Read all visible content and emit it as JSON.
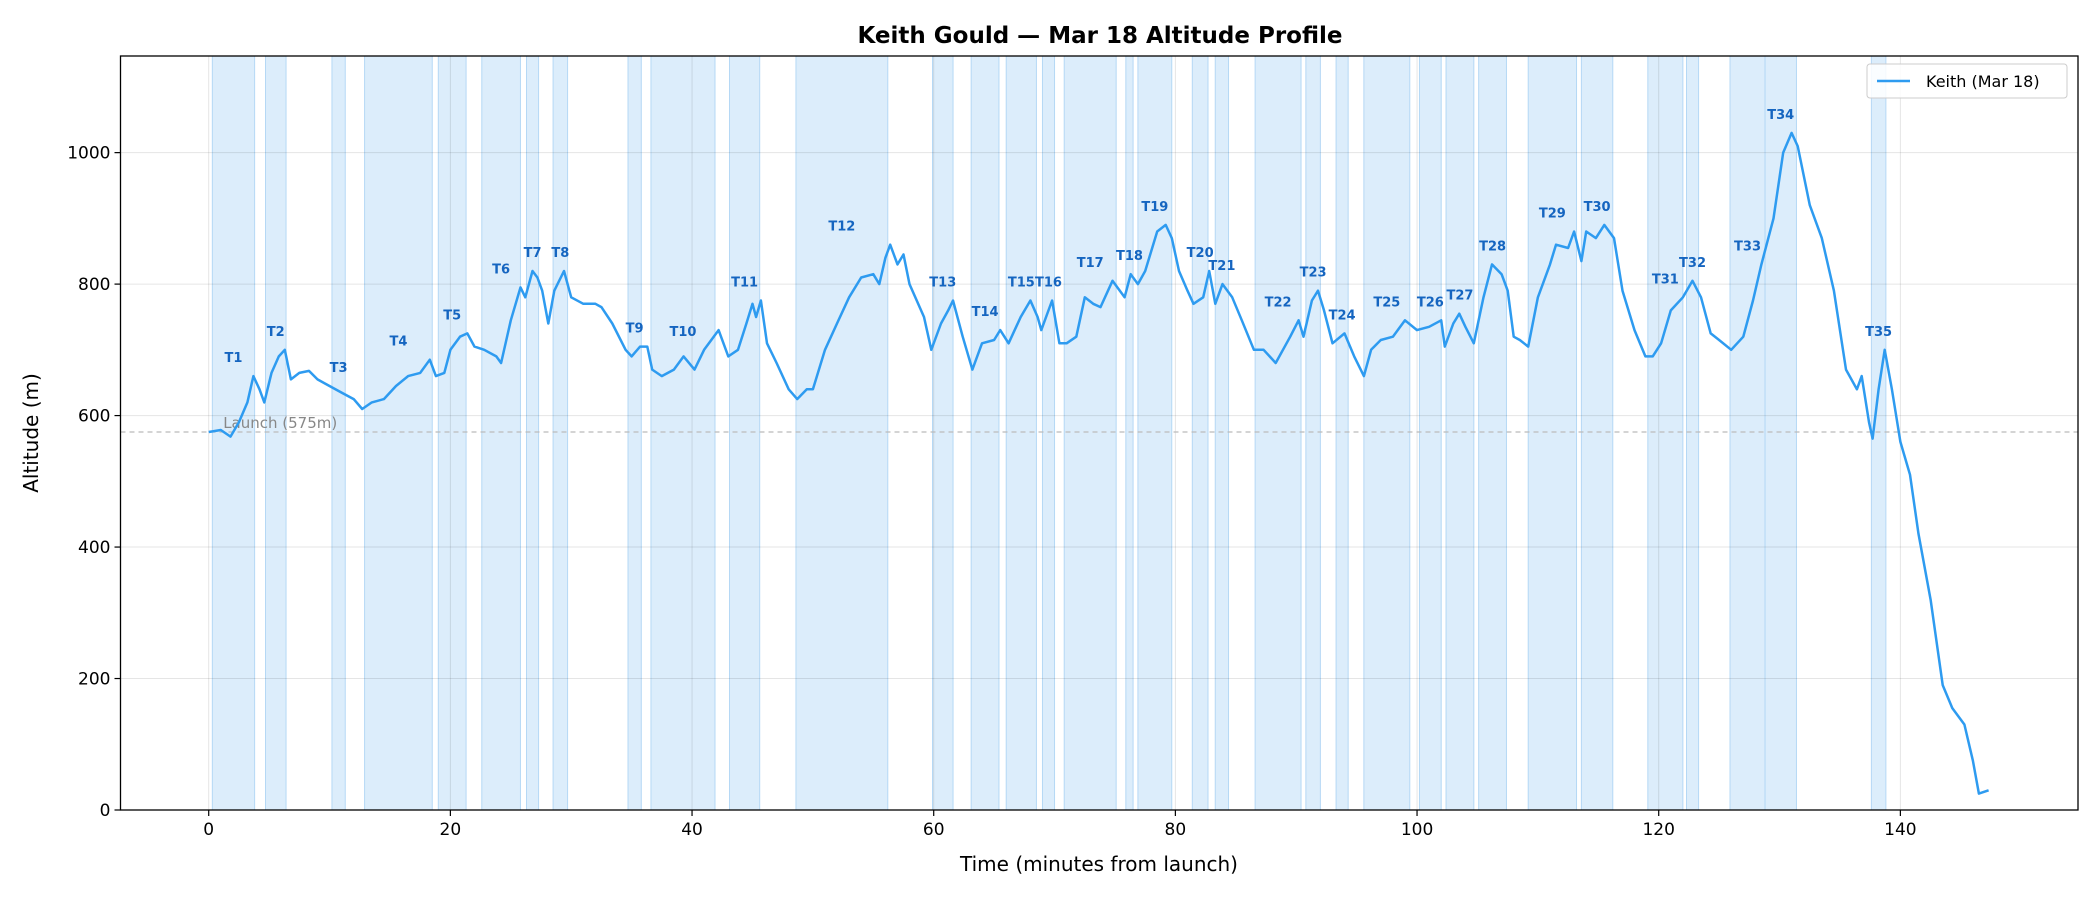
{
  "chart_data": {
    "type": "line",
    "title": "Keith Gould — Mar 18 Altitude Profile",
    "xlabel": "Time (minutes from launch)",
    "ylabel": "Altitude (m)",
    "xlim": [
      -7.3,
      154.7
    ],
    "ylim": [
      0,
      1147
    ],
    "xticks": [
      0,
      20,
      40,
      60,
      80,
      100,
      120,
      140
    ],
    "yticks": [
      0,
      200,
      400,
      600,
      800,
      1000
    ],
    "grid": true,
    "legend_position": "top-right",
    "colors": {
      "line": "#2e9bf0",
      "band": "#dcedfb",
      "band_edge": "#b5d8f5",
      "label": "#1565c0",
      "launch": "#bbbbbb"
    },
    "launch": {
      "altitude": 575,
      "label": "Launch (575m)"
    },
    "series": [
      {
        "name": "Keith (Mar 18)",
        "x": [
          0,
          1,
          1.8,
          2.5,
          3.2,
          3.7,
          4.2,
          4.6,
          5.2,
          5.8,
          6.3,
          6.8,
          7.5,
          8.3,
          9,
          10,
          11,
          12,
          12.7,
          13.5,
          14.5,
          15.5,
          16.5,
          17.5,
          18.3,
          18.8,
          19.5,
          20,
          20.8,
          21.4,
          22,
          22.8,
          23.8,
          24.2,
          25,
          25.8,
          26.2,
          26.8,
          27.2,
          27.6,
          28.1,
          28.6,
          29.4,
          30,
          31,
          32,
          32.5,
          33.4,
          34.5,
          35,
          35.7,
          36.3,
          36.7,
          37.5,
          38.5,
          39.3,
          40.2,
          41,
          42.2,
          43,
          43.8,
          44.5,
          45,
          45.3,
          45.7,
          46.2,
          47,
          48,
          48.7,
          49.5,
          50,
          51,
          52,
          53,
          54,
          55,
          55.5,
          56,
          56.4,
          57,
          57.5,
          58,
          59.2,
          59.8,
          60.6,
          61.2,
          61.6,
          62.4,
          63.2,
          64,
          65,
          65.5,
          66.2,
          67.2,
          68,
          68.6,
          68.9,
          69.8,
          70.4,
          71,
          71.8,
          72.5,
          73.2,
          73.8,
          74.8,
          75.8,
          76.3,
          76.9,
          77.5,
          78.5,
          79.2,
          79.7,
          80.3,
          81,
          81.5,
          82.3,
          82.8,
          83.3,
          83.9,
          84.7,
          85.5,
          86.5,
          87.3,
          88.3,
          89.5,
          90.2,
          90.6,
          91.3,
          91.8,
          92.3,
          93,
          94,
          94.8,
          95.6,
          96.2,
          97,
          98,
          99,
          100,
          101,
          102,
          102.3,
          103,
          103.5,
          104,
          104.7,
          105.5,
          106.2,
          107,
          107.5,
          108,
          108.5,
          109.2,
          110,
          111,
          111.5,
          112.5,
          113,
          113.6,
          114,
          114.8,
          115.5,
          116.3,
          117,
          118,
          118.9,
          119.5,
          120.2,
          121,
          122,
          122.8,
          123.5,
          124.3,
          125,
          126,
          127,
          127.8,
          128.5,
          129.5,
          130.3,
          131,
          131.5,
          132.5,
          133.5,
          134.5,
          135.5,
          136.4,
          136.8,
          137.4,
          137.7,
          138.2,
          138.7,
          139.3,
          140,
          140.8,
          141.5,
          142.5,
          143.5,
          144.3,
          145.3,
          146,
          146.5,
          147.3
        ],
        "y": [
          575,
          578,
          568,
          590,
          620,
          660,
          640,
          620,
          665,
          690,
          700,
          655,
          665,
          668,
          655,
          645,
          635,
          625,
          610,
          620,
          625,
          645,
          660,
          665,
          685,
          660,
          665,
          700,
          720,
          725,
          705,
          700,
          690,
          680,
          745,
          795,
          780,
          820,
          810,
          790,
          740,
          790,
          820,
          780,
          770,
          770,
          765,
          740,
          700,
          690,
          705,
          705,
          670,
          660,
          670,
          690,
          670,
          700,
          730,
          690,
          700,
          740,
          770,
          750,
          775,
          710,
          680,
          640,
          625,
          640,
          640,
          700,
          740,
          780,
          810,
          815,
          800,
          840,
          860,
          830,
          845,
          800,
          750,
          700,
          740,
          760,
          775,
          720,
          670,
          710,
          715,
          730,
          710,
          750,
          775,
          750,
          730,
          775,
          710,
          710,
          720,
          780,
          770,
          765,
          805,
          780,
          815,
          800,
          820,
          880,
          890,
          870,
          820,
          790,
          770,
          780,
          820,
          770,
          800,
          780,
          745,
          700,
          700,
          680,
          720,
          745,
          720,
          775,
          790,
          760,
          710,
          725,
          690,
          660,
          700,
          715,
          720,
          745,
          730,
          735,
          745,
          705,
          740,
          755,
          735,
          710,
          780,
          830,
          815,
          790,
          720,
          715,
          705,
          780,
          830,
          860,
          855,
          880,
          835,
          880,
          870,
          890,
          870,
          790,
          730,
          690,
          690,
          710,
          760,
          780,
          805,
          780,
          725,
          715,
          700,
          720,
          775,
          830,
          900,
          1000,
          1030,
          1010,
          920,
          870,
          790,
          670,
          640,
          660,
          590,
          565,
          640,
          700,
          640,
          560,
          510,
          420,
          320,
          190,
          155,
          130,
          75,
          25,
          30
        ]
      }
    ],
    "thermals": [
      {
        "label": "T1",
        "start": 0.3,
        "end": 3.8
      },
      {
        "label": "T2",
        "start": 4.7,
        "end": 6.4
      },
      {
        "label": "T3",
        "start": 10.2,
        "end": 11.3
      },
      {
        "label": "T4",
        "start": 12.9,
        "end": 18.5
      },
      {
        "label": "T5",
        "start": 19.0,
        "end": 21.3
      },
      {
        "label": "T6",
        "start": 22.6,
        "end": 25.8
      },
      {
        "label": "T7",
        "start": 26.3,
        "end": 27.3
      },
      {
        "label": "T8",
        "start": 28.5,
        "end": 29.7
      },
      {
        "label": "T9",
        "start": 34.7,
        "end": 35.8
      },
      {
        "label": "T10",
        "start": 36.6,
        "end": 41.9
      },
      {
        "label": "T11",
        "start": 43.1,
        "end": 45.6
      },
      {
        "label": "T12",
        "start": 48.6,
        "end": 56.2
      },
      {
        "label": "T13",
        "start": 59.9,
        "end": 61.6
      },
      {
        "label": "T14",
        "start": 63.1,
        "end": 65.4
      },
      {
        "label": "T15",
        "start": 66.0,
        "end": 68.5
      },
      {
        "label": "T16",
        "start": 69.0,
        "end": 70.0
      },
      {
        "label": "T17",
        "start": 70.8,
        "end": 75.1
      },
      {
        "label": "T18",
        "start": 75.9,
        "end": 76.5
      },
      {
        "label": "T19",
        "start": 76.9,
        "end": 79.7
      },
      {
        "label": "T20",
        "start": 81.4,
        "end": 82.7
      },
      {
        "label": "T21",
        "start": 83.3,
        "end": 84.4
      },
      {
        "label": "T22",
        "start": 86.6,
        "end": 90.4
      },
      {
        "label": "T23",
        "start": 90.8,
        "end": 92.0
      },
      {
        "label": "T24",
        "start": 93.3,
        "end": 94.3
      },
      {
        "label": "T25",
        "start": 95.6,
        "end": 99.4
      },
      {
        "label": "T26",
        "start": 100.2,
        "end": 102.0
      },
      {
        "label": "T27",
        "start": 102.4,
        "end": 104.7
      },
      {
        "label": "T28",
        "start": 105.1,
        "end": 107.4
      },
      {
        "label": "T29",
        "start": 109.2,
        "end": 113.2
      },
      {
        "label": "T30",
        "start": 113.6,
        "end": 116.2
      },
      {
        "label": "T31",
        "start": 119.1,
        "end": 122.0
      },
      {
        "label": "T32",
        "start": 122.3,
        "end": 123.3
      },
      {
        "label": "T33",
        "start": 125.9,
        "end": 128.8
      },
      {
        "label": "T34",
        "start": 128.8,
        "end": 131.4
      },
      {
        "label": "T35",
        "start": 137.6,
        "end": 138.8
      }
    ]
  }
}
